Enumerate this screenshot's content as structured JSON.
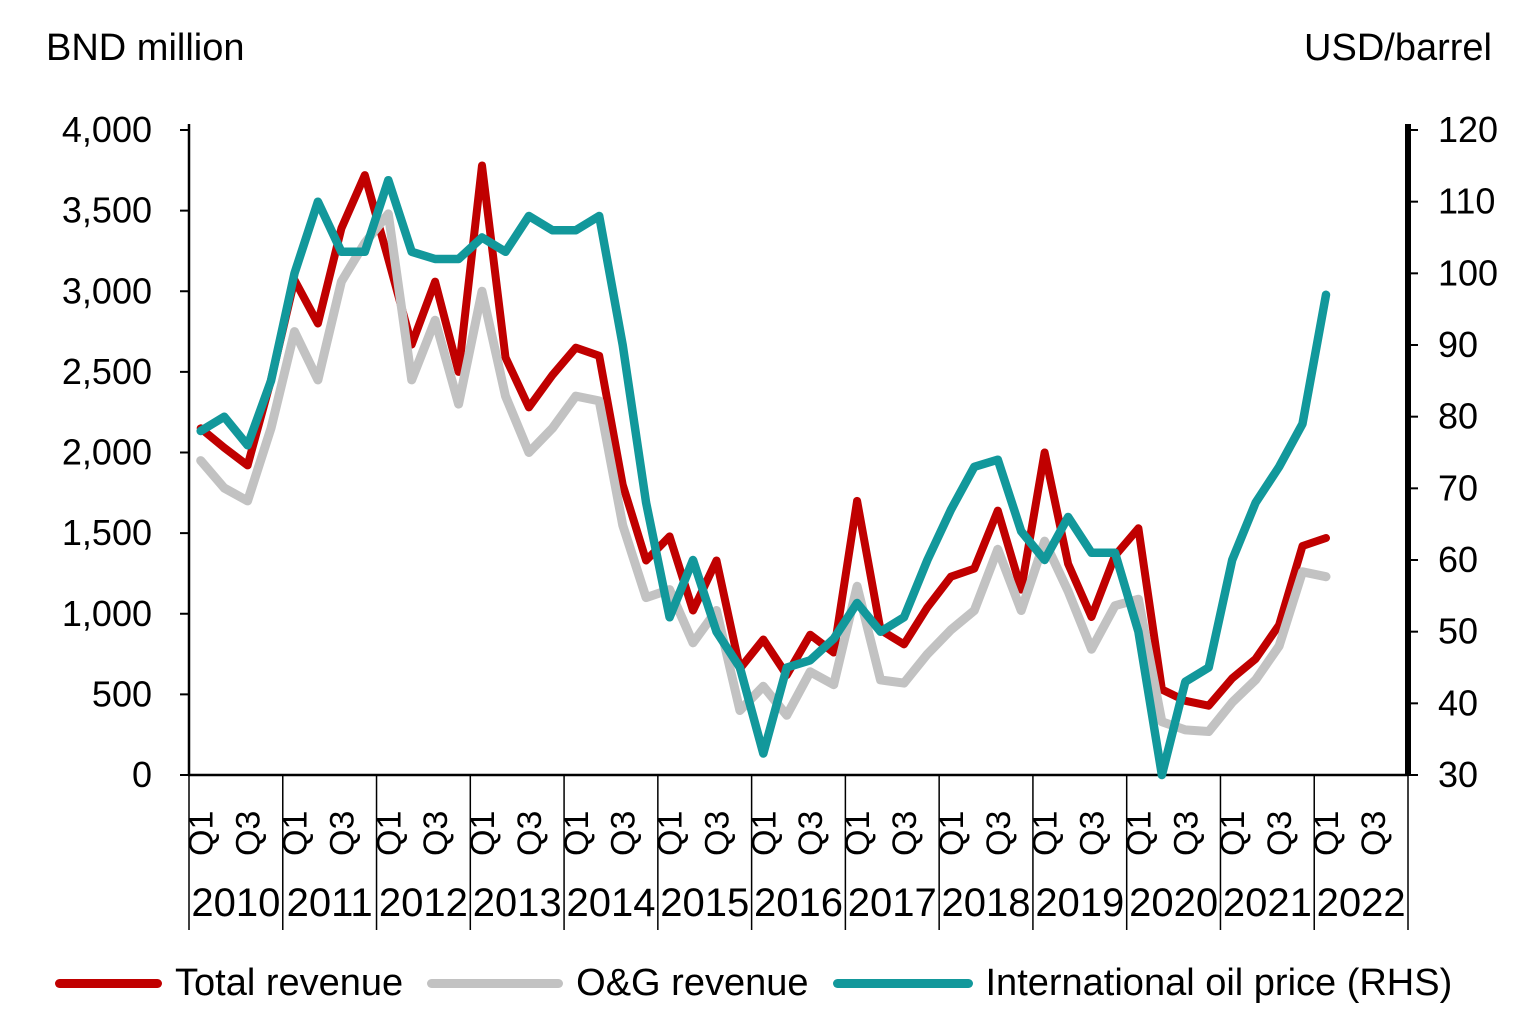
{
  "header": {
    "left_axis_title": "BND million",
    "right_axis_title": "USD/barrel"
  },
  "legend": {
    "items": [
      {
        "label": "Total revenue",
        "color": "#C00000"
      },
      {
        "label": "O&G revenue",
        "color": "#C2C2C2"
      },
      {
        "label": "International oil price (RHS)",
        "color": "#12989B"
      }
    ]
  },
  "chart_data": {
    "type": "line",
    "title": "",
    "grid": "off",
    "legend_position": "bottom",
    "left_axis": {
      "title": "BND million",
      "min": 0,
      "max": 4000,
      "tick_values": [
        4000,
        3500,
        3000,
        2500,
        2000,
        1500,
        1000,
        500,
        0
      ],
      "tick_labels": [
        "4,000",
        "3,500",
        "3,000",
        "2,500",
        "2,000",
        "1,500",
        "1,000",
        "500",
        "0"
      ]
    },
    "right_axis": {
      "title": "USD/barrel",
      "min": 30,
      "max": 120,
      "tick_values": [
        120,
        110,
        100,
        90,
        80,
        70,
        60,
        50,
        40,
        30
      ],
      "tick_labels": [
        "120",
        "110",
        "100",
        "90",
        "80",
        "70",
        "60",
        "50",
        "40",
        "30"
      ]
    },
    "x_axis": {
      "years": [
        "2010",
        "2011",
        "2012",
        "2013",
        "2014",
        "2015",
        "2016",
        "2017",
        "2018",
        "2019",
        "2020",
        "2021",
        "2022"
      ],
      "quarter_tick_labels": [
        "Q1",
        "Q3"
      ],
      "quarter_label_positions": [
        0,
        2
      ],
      "quarters_per_year": 4,
      "first_point": "2010 Q1",
      "last_point": "2022 Q1"
    },
    "series": [
      {
        "name": "Total revenue",
        "axis": "left",
        "color": "#C00000",
        "values": [
          2150,
          2030,
          1920,
          2450,
          3070,
          2800,
          3390,
          3720,
          3200,
          2670,
          3060,
          2500,
          3780,
          2590,
          2280,
          2480,
          2650,
          2600,
          1800,
          1330,
          1480,
          1020,
          1330,
          660,
          840,
          620,
          870,
          760,
          1700,
          900,
          810,
          1040,
          1230,
          1280,
          1640,
          1150,
          2000,
          1310,
          980,
          1360,
          1530,
          530,
          460,
          430,
          600,
          720,
          930,
          1420,
          1470
        ]
      },
      {
        "name": "O&G revenue",
        "axis": "left",
        "color": "#C2C2C2",
        "values": [
          1950,
          1780,
          1700,
          2150,
          2750,
          2450,
          3060,
          3300,
          3480,
          2450,
          2820,
          2300,
          3000,
          2350,
          2000,
          2150,
          2350,
          2320,
          1550,
          1100,
          1150,
          820,
          1020,
          400,
          550,
          370,
          640,
          560,
          1170,
          590,
          570,
          750,
          900,
          1020,
          1400,
          1020,
          1450,
          1140,
          780,
          1050,
          1090,
          330,
          280,
          270,
          450,
          590,
          800,
          1260,
          1230
        ]
      },
      {
        "name": "International oil price (RHS)",
        "axis": "right",
        "color": "#12989B",
        "values": [
          78,
          80,
          76,
          85,
          100,
          110,
          103,
          103,
          113,
          103,
          102,
          102,
          105,
          103,
          108,
          106,
          106,
          108,
          90,
          68,
          52,
          60,
          50,
          45,
          33,
          45,
          46,
          49,
          54,
          50,
          52,
          60,
          67,
          73,
          74,
          64,
          60,
          66,
          61,
          61,
          50,
          30,
          43,
          45,
          60,
          68,
          73,
          79,
          97
        ]
      }
    ]
  }
}
